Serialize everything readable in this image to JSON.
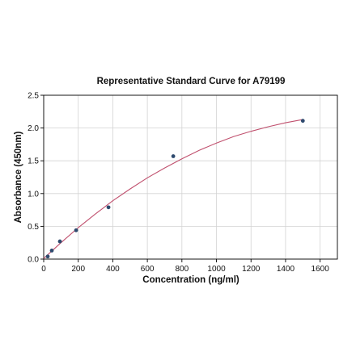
{
  "chart_data": {
    "type": "scatter",
    "title": "Representative Standard Curve for A79199",
    "xlabel": "Concentration (ng/ml)",
    "ylabel": "Absorbance (450nm)",
    "xlim": [
      0,
      1700
    ],
    "ylim": [
      0,
      2.5
    ],
    "xticks": [
      0,
      200,
      400,
      600,
      800,
      1000,
      1200,
      1400,
      1600
    ],
    "yticks": [
      0.0,
      0.5,
      1.0,
      1.5,
      2.0,
      2.5
    ],
    "xtick_labels": [
      "0",
      "200",
      "400",
      "600",
      "800",
      "1000",
      "1200",
      "1400",
      "1600"
    ],
    "ytick_labels": [
      "0.0",
      "0.5",
      "1.0",
      "1.5",
      "2.0",
      "2.5"
    ],
    "grid": true,
    "points": {
      "x": [
        23.4,
        46.9,
        93.8,
        187.5,
        375,
        750,
        1500
      ],
      "y": [
        0.04,
        0.13,
        0.27,
        0.44,
        0.79,
        1.57,
        2.11
      ]
    },
    "fit_curve": {
      "x": [
        0,
        100,
        200,
        300,
        400,
        500,
        600,
        700,
        800,
        900,
        1000,
        1100,
        1200,
        1300,
        1400,
        1500
      ],
      "y": [
        0.01,
        0.25,
        0.48,
        0.69,
        0.89,
        1.07,
        1.24,
        1.39,
        1.53,
        1.66,
        1.77,
        1.87,
        1.95,
        2.02,
        2.08,
        2.13
      ]
    },
    "colors": {
      "points": "#2e4a6e",
      "curve": "#c0506e",
      "grid": "#d3d3d3",
      "axis": "#000000"
    }
  }
}
